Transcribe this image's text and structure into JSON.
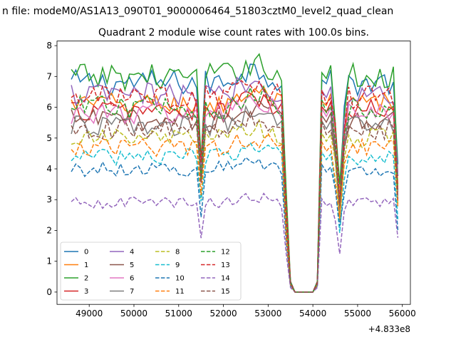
{
  "suptitle": "n file: modeM0/AS1A13_090T01_9000006464_51803cztM0_level2_quad_clean",
  "chart_data": {
    "type": "line",
    "title": "Quadrant 2 module wise count rates with 100.0s bins.",
    "xlabel": "",
    "ylabel": "",
    "x_offset_label": "+4.833e8",
    "xlim": [
      48280,
      56180
    ],
    "ylim": [
      -0.4,
      8.15
    ],
    "x_ticks": [
      49000,
      50000,
      51000,
      52000,
      53000,
      54000,
      55000,
      56000
    ],
    "x_tick_labels": [
      "49000",
      "50000",
      "51000",
      "52000",
      "53000",
      "54000",
      "55000",
      "56000"
    ],
    "y_ticks": [
      0,
      1,
      2,
      3,
      4,
      5,
      6,
      7,
      8
    ],
    "y_tick_labels": [
      "0",
      "1",
      "2",
      "3",
      "4",
      "5",
      "6",
      "7",
      "8"
    ],
    "legend_position": "lower-left",
    "legend_columns": 4,
    "x_start": 48600,
    "x_end": 55900,
    "bin_size": 100,
    "series": [
      {
        "name": "0",
        "color": "#1f77b4",
        "dash": "solid",
        "level": 6.8
      },
      {
        "name": "1",
        "color": "#ff7f0e",
        "dash": "solid",
        "level": 6.1
      },
      {
        "name": "2",
        "color": "#2ca02c",
        "dash": "solid",
        "level": 7.0
      },
      {
        "name": "3",
        "color": "#d62728",
        "dash": "solid",
        "level": 5.9
      },
      {
        "name": "4",
        "color": "#9467bd",
        "dash": "solid",
        "level": 6.4
      },
      {
        "name": "5",
        "color": "#8c564b",
        "dash": "solid",
        "level": 5.6
      },
      {
        "name": "6",
        "color": "#e377c2",
        "dash": "solid",
        "level": 5.8
      },
      {
        "name": "7",
        "color": "#7f7f7f",
        "dash": "solid",
        "level": 5.4
      },
      {
        "name": "8",
        "color": "#bcbd22",
        "dash": "dashed",
        "level": 5.0
      },
      {
        "name": "9",
        "color": "#17becf",
        "dash": "dashed",
        "level": 4.4
      },
      {
        "name": "10",
        "color": "#1f77b4",
        "dash": "dashed",
        "level": 4.0
      },
      {
        "name": "11",
        "color": "#ff7f0e",
        "dash": "dashed",
        "level": 4.7
      },
      {
        "name": "12",
        "color": "#2ca02c",
        "dash": "dashed",
        "level": 6.0
      },
      {
        "name": "13",
        "color": "#d62728",
        "dash": "dashed",
        "level": 6.3
      },
      {
        "name": "14",
        "color": "#9467bd",
        "dash": "dashed",
        "level": 2.9
      },
      {
        "name": "15",
        "color": "#8c564b",
        "dash": "dashed",
        "level": 5.3
      }
    ]
  }
}
